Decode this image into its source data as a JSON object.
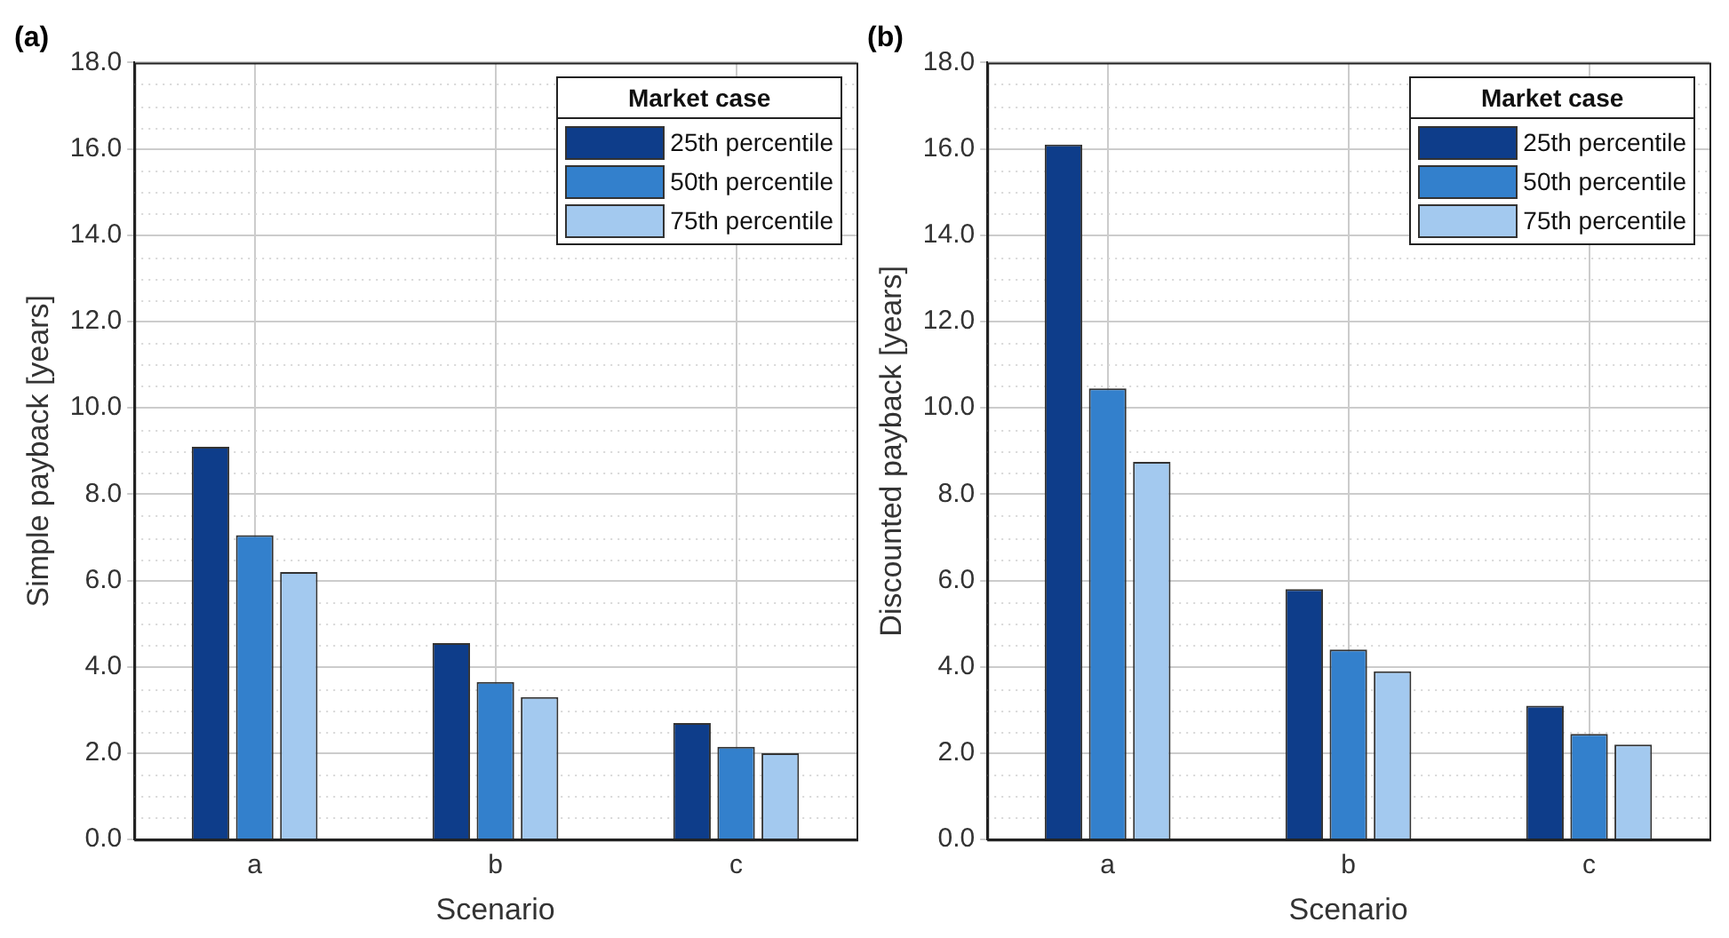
{
  "chart_data": [
    {
      "type": "bar",
      "title": "(a)",
      "xlabel": "Scenario",
      "ylabel": "Simple payback [years]",
      "legend_title": "Market case",
      "categories": [
        "a",
        "b",
        "c"
      ],
      "series": [
        {
          "name": "25th percentile",
          "color": "#0e3d8a",
          "values": [
            9.1,
            4.55,
            2.7
          ]
        },
        {
          "name": "50th percentile",
          "color": "#3380cc",
          "values": [
            7.05,
            3.65,
            2.15
          ]
        },
        {
          "name": "75th percentile",
          "color": "#a3c9ef",
          "values": [
            6.2,
            3.3,
            2.0
          ]
        }
      ],
      "ylim": [
        0,
        18
      ],
      "yticks": [
        {
          "value": 0,
          "label": "0.0"
        },
        {
          "value": 2,
          "label": "2.0"
        },
        {
          "value": 4,
          "label": "4.0"
        },
        {
          "value": 6,
          "label": "6.0"
        },
        {
          "value": 8,
          "label": "8.0"
        },
        {
          "value": 10,
          "label": "10.0"
        },
        {
          "value": 12,
          "label": "12.0"
        },
        {
          "value": 14,
          "label": "14.0"
        },
        {
          "value": 16,
          "label": "16.0"
        },
        {
          "value": 18,
          "label": "18.0"
        }
      ],
      "grid": true,
      "legend": "top right"
    },
    {
      "type": "bar",
      "title": "(b)",
      "xlabel": "Scenario",
      "ylabel": "Discounted payback [years]",
      "legend_title": "Market case",
      "categories": [
        "a",
        "b",
        "c"
      ],
      "series": [
        {
          "name": "25th percentile",
          "color": "#0e3d8a",
          "values": [
            16.1,
            5.8,
            3.1
          ]
        },
        {
          "name": "50th percentile",
          "color": "#3380cc",
          "values": [
            10.45,
            4.4,
            2.45
          ]
        },
        {
          "name": "75th percentile",
          "color": "#a3c9ef",
          "values": [
            8.75,
            3.9,
            2.2
          ]
        }
      ],
      "ylim": [
        0,
        18
      ],
      "yticks": [
        {
          "value": 0,
          "label": "0.0"
        },
        {
          "value": 2,
          "label": "2.0"
        },
        {
          "value": 4,
          "label": "4.0"
        },
        {
          "value": 6,
          "label": "6.0"
        },
        {
          "value": 8,
          "label": "8.0"
        },
        {
          "value": 10,
          "label": "10.0"
        },
        {
          "value": 12,
          "label": "12.0"
        },
        {
          "value": 14,
          "label": "14.0"
        },
        {
          "value": 16,
          "label": "16.0"
        },
        {
          "value": 18,
          "label": "18.0"
        }
      ],
      "grid": true,
      "legend": "top right"
    }
  ]
}
